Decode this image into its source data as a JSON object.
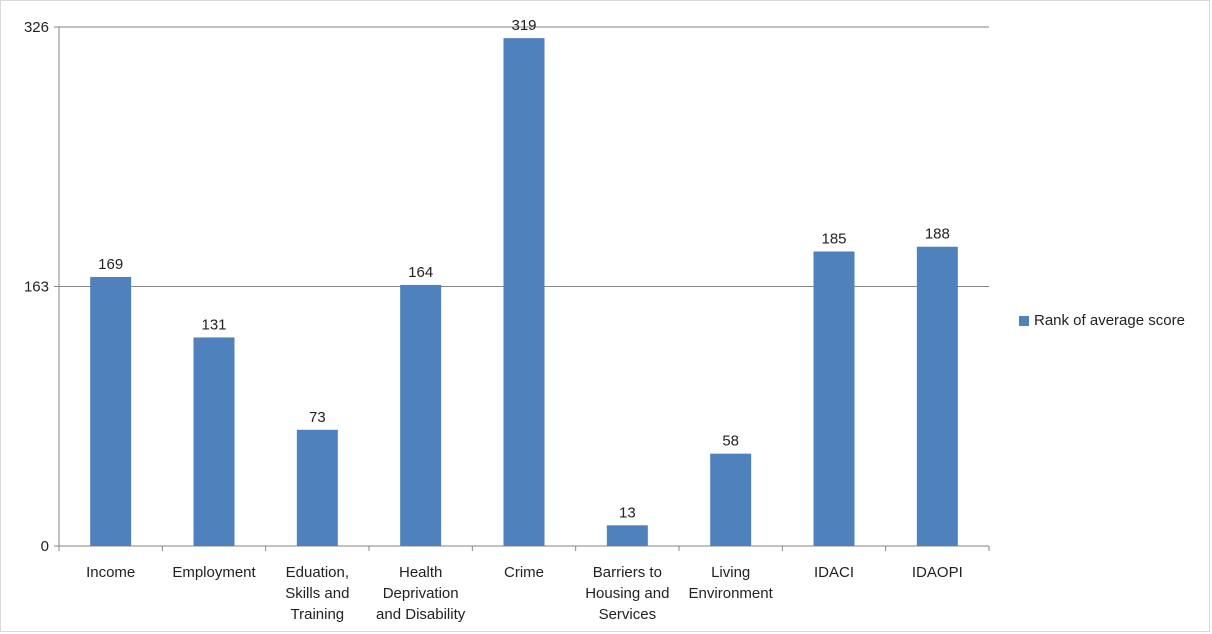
{
  "chart_data": {
    "type": "bar",
    "categories": [
      [
        "Income"
      ],
      [
        "Employment"
      ],
      [
        "Eduation,",
        "Skills and",
        "Training"
      ],
      [
        "Health",
        "Deprivation",
        "and Disability"
      ],
      [
        "Crime"
      ],
      [
        "Barriers to",
        "Housing and",
        "Services"
      ],
      [
        "Living",
        "Environment"
      ],
      [
        "IDACI"
      ],
      [
        "IDAOPI"
      ]
    ],
    "series": [
      {
        "name": "Rank of average score",
        "values": [
          169,
          131,
          73,
          164,
          319,
          13,
          58,
          185,
          188
        ],
        "color": "#4f81bd"
      }
    ],
    "data_labels": [
      "169",
      "131",
      "73",
      "164",
      "319",
      "13",
      "58",
      "185",
      "188"
    ],
    "yticks": [
      0,
      163,
      326
    ],
    "ytick_labels": [
      "0",
      "163",
      "326"
    ],
    "ylim": [
      0,
      326
    ],
    "grid": true,
    "legend_position": "right"
  }
}
